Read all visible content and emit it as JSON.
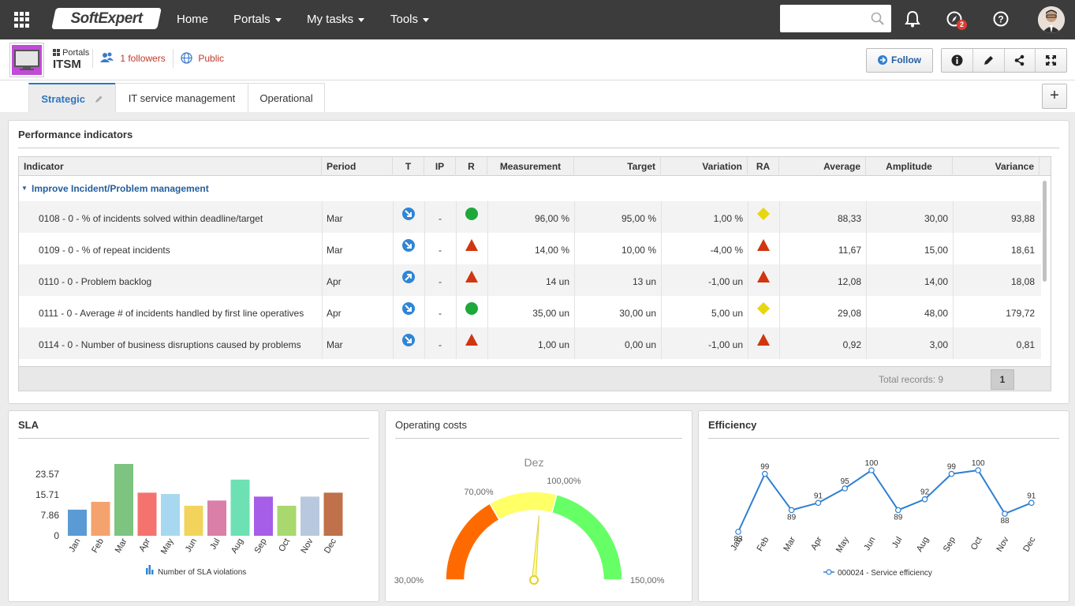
{
  "topbar": {
    "logo": "SoftExpert",
    "nav": [
      "Home",
      "Portals",
      "My tasks",
      "Tools"
    ],
    "notifications_badge": "2"
  },
  "portal": {
    "breadcrumb": "Portals",
    "title": "ITSM",
    "followers": "1 followers",
    "visibility": "Public",
    "follow_label": "Follow"
  },
  "tabs": [
    "Strategic",
    "IT service management",
    "Operational"
  ],
  "add_tab": "+",
  "performance": {
    "title": "Performance indicators",
    "columns": [
      "Indicator",
      "Period",
      "T",
      "IP",
      "R",
      "Measurement",
      "Target",
      "Variation",
      "RA",
      "Average",
      "Amplitude",
      "Variance"
    ],
    "group": "Improve Incident/Problem management",
    "rows": [
      {
        "indicator": "0108 - 0 - % of incidents solved within deadline/target",
        "period": "Mar",
        "t": "down",
        "ip": "-",
        "r": "green-circle",
        "measurement": "96,00 %",
        "target": "95,00 %",
        "variation": "1,00 %",
        "ra": "yellow-diamond",
        "average": "88,33",
        "amplitude": "30,00",
        "variance": "93,88"
      },
      {
        "indicator": "0109 - 0 - % of repeat incidents",
        "period": "Mar",
        "t": "down",
        "ip": "-",
        "r": "red-triangle",
        "measurement": "14,00 %",
        "target": "10,00 %",
        "variation": "-4,00 %",
        "ra": "red-triangle",
        "average": "11,67",
        "amplitude": "15,00",
        "variance": "18,61"
      },
      {
        "indicator": "0110 - 0 - Problem backlog",
        "period": "Apr",
        "t": "up",
        "ip": "-",
        "r": "red-triangle",
        "measurement": "14 un",
        "target": "13 un",
        "variation": "-1,00 un",
        "ra": "red-triangle",
        "average": "12,08",
        "amplitude": "14,00",
        "variance": "18,08"
      },
      {
        "indicator": "0111 - 0 - Average # of incidents handled by first line operatives",
        "period": "Apr",
        "t": "down",
        "ip": "-",
        "r": "green-circle",
        "measurement": "35,00 un",
        "target": "30,00 un",
        "variation": "5,00 un",
        "ra": "yellow-diamond",
        "average": "29,08",
        "amplitude": "48,00",
        "variance": "179,72"
      },
      {
        "indicator": "0114 - 0 - Number of business disruptions caused by problems",
        "period": "Mar",
        "t": "down",
        "ip": "-",
        "r": "red-triangle",
        "measurement": "1,00 un",
        "target": "0,00 un",
        "variation": "-1,00 un",
        "ra": "red-triangle",
        "average": "0,92",
        "amplitude": "3,00",
        "variance": "0,81"
      }
    ],
    "total_records": "Total records: 9",
    "page": "1"
  },
  "sla": {
    "title": "SLA",
    "legend": "Number of SLA violations"
  },
  "costs": {
    "title": "Operating costs"
  },
  "efficiency": {
    "title": "Efficiency",
    "legend": "000024 - Service efficiency"
  },
  "chart_data": [
    {
      "type": "bar",
      "title": "SLA",
      "categories": [
        "Jan",
        "Feb",
        "Mar",
        "Apr",
        "May",
        "Jun",
        "Jul",
        "Aug",
        "Sep",
        "Oct",
        "Nov",
        "Dec"
      ],
      "values": [
        10,
        13,
        27.5,
        16.5,
        16,
        11.5,
        13.5,
        21.5,
        15,
        11.5,
        15,
        16.5
      ],
      "colors": [
        "#5b9bd5",
        "#f4a36e",
        "#7cc47f",
        "#f4736e",
        "#a8d8f0",
        "#f2d45c",
        "#d97fa8",
        "#6de0b4",
        "#a65de8",
        "#a8d86e",
        "#b8c8de",
        "#c0704a"
      ],
      "yticks": [
        "0",
        "7.86",
        "15.71",
        "23.57"
      ],
      "ylim": [
        0,
        27.5
      ],
      "legend": [
        "Number of SLA violations"
      ]
    },
    {
      "type": "gauge",
      "title": "Operating costs",
      "label": "Dez",
      "bands": [
        {
          "from": 30,
          "to": 70,
          "color": "#ff6a00"
        },
        {
          "from": 70,
          "to": 100,
          "color": "#ffff66"
        },
        {
          "from": 100,
          "to": 150,
          "color": "#66ff66"
        }
      ],
      "band_labels": [
        "30,00%",
        "70,00%",
        "100,00%",
        "150,00%"
      ],
      "min": 30,
      "max": 150,
      "value": 93
    },
    {
      "type": "line",
      "title": "Efficiency",
      "categories": [
        "Jan",
        "Feb",
        "Mar",
        "Apr",
        "May",
        "Jun",
        "Jul",
        "Aug",
        "Sep",
        "Oct",
        "Nov",
        "Dec"
      ],
      "series": [
        {
          "name": "000024 - Service efficiency",
          "values": [
            83,
            99,
            89,
            91,
            95,
            100,
            89,
            92,
            99,
            100,
            88,
            91
          ],
          "color": "#2f7fd0"
        }
      ]
    }
  ]
}
